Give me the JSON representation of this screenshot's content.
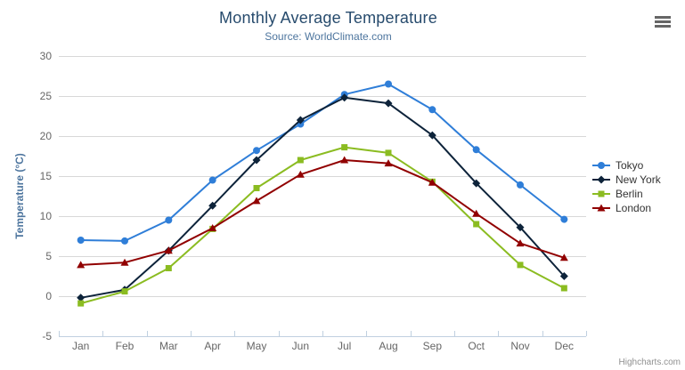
{
  "header": {
    "title": "Monthly Average Temperature",
    "subtitle": "Source: WorldClimate.com"
  },
  "credits": {
    "label": "Highcharts.com"
  },
  "chart_data": {
    "type": "line",
    "title": "Monthly Average Temperature",
    "subtitle": "Source: WorldClimate.com",
    "categories": [
      "Jan",
      "Feb",
      "Mar",
      "Apr",
      "May",
      "Jun",
      "Jul",
      "Aug",
      "Sep",
      "Oct",
      "Nov",
      "Dec"
    ],
    "xlabel": "",
    "ylabel": "Temperature (°C)",
    "ylim": [
      -5,
      30
    ],
    "yticks": [
      -5,
      0,
      5,
      10,
      15,
      20,
      25,
      30
    ],
    "grid": true,
    "legend_position": "right",
    "series": [
      {
        "name": "Tokyo",
        "color": "#2f7ed8",
        "marker": "circle",
        "values": [
          7.0,
          6.9,
          9.5,
          14.5,
          18.2,
          21.5,
          25.2,
          26.5,
          23.3,
          18.3,
          13.9,
          9.6
        ]
      },
      {
        "name": "New York",
        "color": "#0d233a",
        "marker": "diamond",
        "values": [
          -0.2,
          0.8,
          5.7,
          11.3,
          17.0,
          22.0,
          24.8,
          24.1,
          20.1,
          14.1,
          8.6,
          2.5
        ]
      },
      {
        "name": "Berlin",
        "color": "#8bbc21",
        "marker": "square",
        "values": [
          -0.9,
          0.6,
          3.5,
          8.4,
          13.5,
          17.0,
          18.6,
          17.9,
          14.3,
          9.0,
          3.9,
          1.0
        ]
      },
      {
        "name": "London",
        "color": "#910000",
        "marker": "triangle",
        "values": [
          3.9,
          4.2,
          5.7,
          8.5,
          11.9,
          15.2,
          17.0,
          16.6,
          14.2,
          10.3,
          6.6,
          4.8
        ]
      }
    ],
    "style": {
      "grid_color": "#d8d8d8",
      "axis_line_color": "#c0d0e0",
      "label_color": "#666666",
      "title_color": "#274b6d",
      "subtitle_color": "#4d759e",
      "axis_title_color": "#4d759e",
      "legend_text_color": "#333333",
      "credits_color": "#909090",
      "menu_icon_color": "#666666"
    }
  }
}
